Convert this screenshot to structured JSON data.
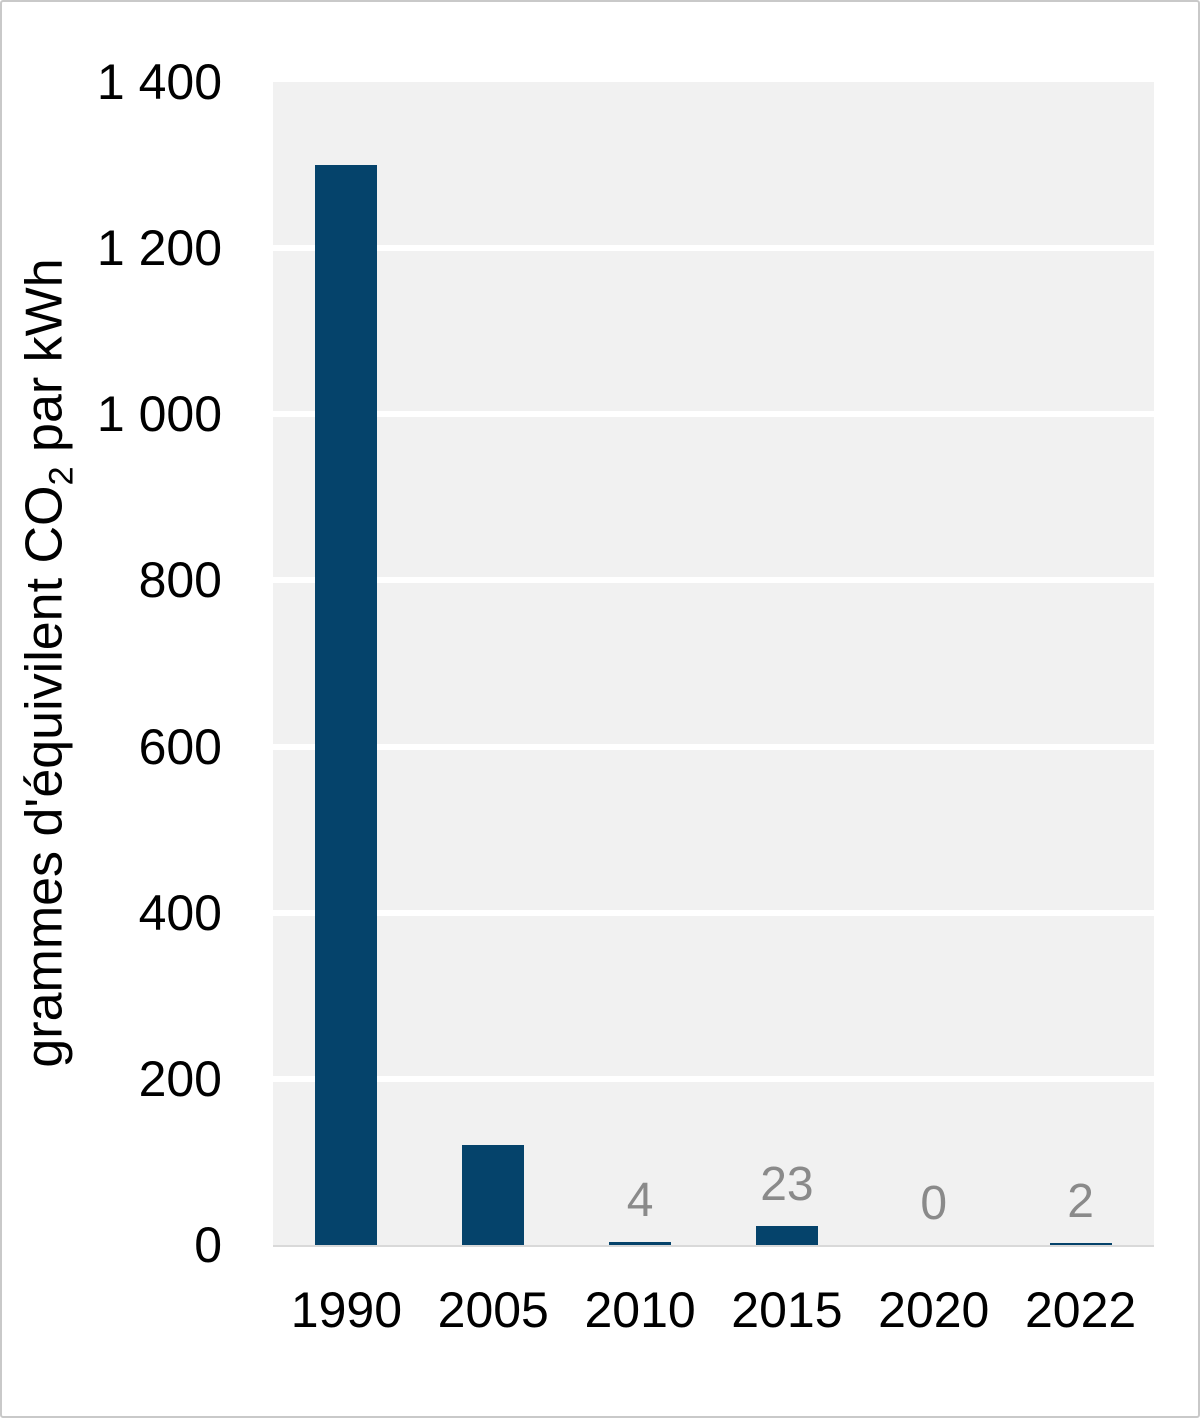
{
  "chart_data": {
    "type": "bar",
    "categories": [
      "1990",
      "2005",
      "2010",
      "2015",
      "2020",
      "2022"
    ],
    "values": [
      1300,
      120,
      4,
      23,
      0,
      2
    ],
    "point_labels": [
      null,
      null,
      "4",
      "23",
      "0",
      "2"
    ],
    "ylabel": "grammes d'équivilent CO2 par kWh",
    "ylabel_parts": {
      "prefix": "grammes d'équivilent CO",
      "sub": "2",
      "suffix": " par kWh"
    },
    "xlabel": "",
    "ylim": [
      0,
      1400
    ],
    "y_ticks": [
      {
        "value": 0,
        "label": "0"
      },
      {
        "value": 200,
        "label": "200"
      },
      {
        "value": 400,
        "label": "400"
      },
      {
        "value": 600,
        "label": "600"
      },
      {
        "value": 800,
        "label": "800"
      },
      {
        "value": 1000,
        "label": "1 000"
      },
      {
        "value": 1200,
        "label": "1 200"
      },
      {
        "value": 1400,
        "label": "1 400"
      }
    ],
    "grid": true,
    "legend_position": "none"
  },
  "colors": {
    "bar": "#05436b",
    "plot_bg": "#f1f1f1",
    "gridline": "#ffffff",
    "axis_line": "#d9d9d9",
    "data_label": "#8a8a8a",
    "text": "#000000",
    "frame_border": "#c9c9c9"
  }
}
